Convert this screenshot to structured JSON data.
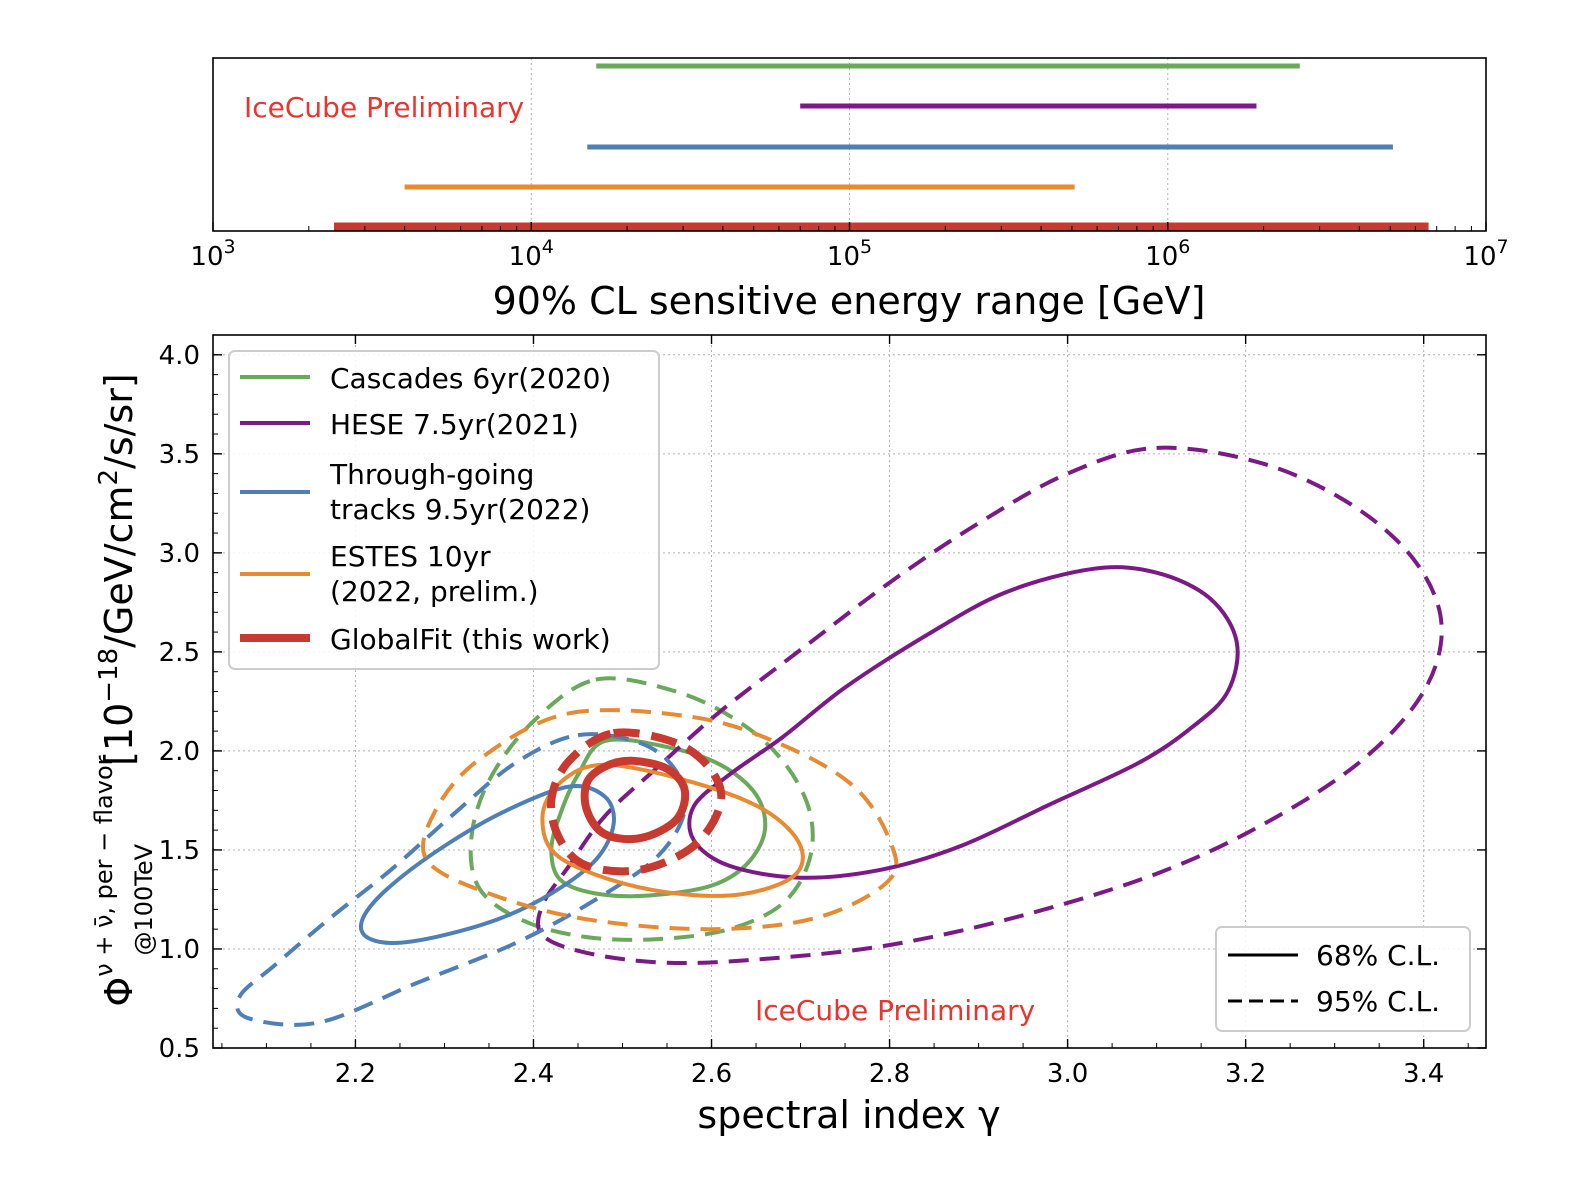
{
  "chart_data": [
    {
      "type": "range",
      "xscale": "log",
      "xlim": [
        1000,
        10000000
      ],
      "xticks": [
        {
          "base": "10",
          "exp": "3"
        },
        {
          "base": "10",
          "exp": "4"
        },
        {
          "base": "10",
          "exp": "5"
        },
        {
          "base": "10",
          "exp": "6"
        },
        {
          "base": "10",
          "exp": "7"
        }
      ],
      "xlabel": "90% CL sensitive energy range [GeV]",
      "annotation": "IceCube Preliminary",
      "grid": true,
      "series": [
        {
          "name": "Cascades 6yr(2020)",
          "color": "#6aa85c",
          "range": [
            16000,
            2600000
          ],
          "width": 5
        },
        {
          "name": "HESE 7.5yr(2021)",
          "color": "#7b1a86",
          "range": [
            70000,
            1900000
          ],
          "width": 5
        },
        {
          "name": "Through-going tracks 9.5yr(2022)",
          "color": "#4e7fb7",
          "range": [
            15000,
            5100000
          ],
          "width": 5
        },
        {
          "name": "ESTES 10yr (2022, prelim.)",
          "color": "#e88a32",
          "range": [
            4000,
            510000
          ],
          "width": 5
        },
        {
          "name": "GlobalFit (this work)",
          "color": "#c8392f",
          "range": [
            2400,
            6600000
          ],
          "width": 9
        }
      ]
    },
    {
      "type": "contour",
      "xlim": [
        2.04,
        3.47
      ],
      "ylim": [
        0.5,
        4.1
      ],
      "xticks": [
        "2.2",
        "2.4",
        "2.6",
        "2.8",
        "3.0",
        "3.2",
        "3.4"
      ],
      "yticks": [
        "0.5",
        "1.0",
        "1.5",
        "2.0",
        "2.5",
        "3.0",
        "3.5",
        "4.0"
      ],
      "xlabel": "spectral index γ",
      "ylabel": {
        "phi": "Φ",
        "superscript": "ν + ν̄, per − flavor",
        "subscript": "@100TeV",
        "bracket_open": "[10",
        "exp18": "−18",
        "unit_mid": "/GeV/cm",
        "exp2": "2",
        "unit_end": "/s/sr]"
      },
      "annotation": "IceCube Preliminary",
      "grid": true,
      "legend": {
        "position": "top-left",
        "entries": [
          {
            "lines": [
              "Cascades 6yr(2020)"
            ],
            "color": "#6aa85c"
          },
          {
            "lines": [
              "HESE 7.5yr(2021)"
            ],
            "color": "#7b1a86"
          },
          {
            "lines": [
              "Through-going",
              "tracks 9.5yr(2022)"
            ],
            "color": "#4e7fb7"
          },
          {
            "lines": [
              "ESTES 10yr",
              "(2022, prelim.)"
            ],
            "color": "#e88a32"
          },
          {
            "lines": [
              "GlobalFit (this work)"
            ],
            "color": "#c8392f"
          }
        ]
      },
      "style_legend": {
        "position": "bottom-right",
        "entries": [
          {
            "label": "68% C.L.",
            "style": "solid"
          },
          {
            "label": "95% C.L.",
            "style": "dashed"
          }
        ]
      },
      "series": [
        {
          "name": "Cascades 6yr(2020)",
          "color": "#6aa85c",
          "width": 4,
          "contours": [
            {
              "level": "68% C.L.",
              "points": [
                [
                  2.48,
                  2.05
                ],
                [
                  2.55,
                  2.02
                ],
                [
                  2.61,
                  1.93
                ],
                [
                  2.65,
                  1.78
                ],
                [
                  2.66,
                  1.6
                ],
                [
                  2.64,
                  1.43
                ],
                [
                  2.6,
                  1.32
                ],
                [
                  2.53,
                  1.27
                ],
                [
                  2.47,
                  1.28
                ],
                [
                  2.43,
                  1.35
                ],
                [
                  2.42,
                  1.5
                ],
                [
                  2.43,
                  1.68
                ],
                [
                  2.45,
                  1.88
                ]
              ]
            },
            {
              "level": "95% C.L.",
              "points": [
                [
                  2.47,
                  2.36
                ],
                [
                  2.56,
                  2.3
                ],
                [
                  2.63,
                  2.15
                ],
                [
                  2.68,
                  1.95
                ],
                [
                  2.71,
                  1.7
                ],
                [
                  2.71,
                  1.45
                ],
                [
                  2.68,
                  1.23
                ],
                [
                  2.62,
                  1.1
                ],
                [
                  2.54,
                  1.05
                ],
                [
                  2.46,
                  1.06
                ],
                [
                  2.39,
                  1.14
                ],
                [
                  2.34,
                  1.3
                ],
                [
                  2.33,
                  1.55
                ],
                [
                  2.35,
                  1.85
                ],
                [
                  2.4,
                  2.15
                ]
              ]
            }
          ]
        },
        {
          "name": "HESE 7.5yr(2021)",
          "color": "#7b1a86",
          "width": 4,
          "contours": [
            {
              "level": "68% C.L.",
              "points": [
                [
                  3.03,
                  2.92
                ],
                [
                  3.1,
                  2.9
                ],
                [
                  3.16,
                  2.77
                ],
                [
                  3.19,
                  2.55
                ],
                [
                  3.18,
                  2.3
                ],
                [
                  3.14,
                  2.12
                ],
                [
                  3.08,
                  1.94
                ],
                [
                  2.98,
                  1.73
                ],
                [
                  2.88,
                  1.52
                ],
                [
                  2.79,
                  1.4
                ],
                [
                  2.7,
                  1.36
                ],
                [
                  2.62,
                  1.42
                ],
                [
                  2.58,
                  1.55
                ],
                [
                  2.58,
                  1.72
                ],
                [
                  2.62,
                  1.88
                ],
                [
                  2.68,
                  2.07
                ],
                [
                  2.75,
                  2.32
                ],
                [
                  2.84,
                  2.58
                ],
                [
                  2.93,
                  2.8
                ]
              ]
            },
            {
              "level": "95% C.L.",
              "points": [
                [
                  3.1,
                  3.53
                ],
                [
                  3.22,
                  3.45
                ],
                [
                  3.32,
                  3.24
                ],
                [
                  3.39,
                  2.96
                ],
                [
                  3.42,
                  2.64
                ],
                [
                  3.4,
                  2.3
                ],
                [
                  3.33,
                  1.95
                ],
                [
                  3.22,
                  1.63
                ],
                [
                  3.1,
                  1.38
                ],
                [
                  2.95,
                  1.17
                ],
                [
                  2.8,
                  1.02
                ],
                [
                  2.66,
                  0.95
                ],
                [
                  2.55,
                  0.93
                ],
                [
                  2.46,
                  0.98
                ],
                [
                  2.41,
                  1.07
                ],
                [
                  2.41,
                  1.22
                ],
                [
                  2.44,
                  1.42
                ],
                [
                  2.48,
                  1.67
                ],
                [
                  2.54,
                  1.92
                ],
                [
                  2.61,
                  2.2
                ],
                [
                  2.7,
                  2.51
                ],
                [
                  2.8,
                  2.85
                ],
                [
                  2.9,
                  3.15
                ],
                [
                  3.0,
                  3.4
                ]
              ]
            }
          ]
        },
        {
          "name": "Through-going tracks 9.5yr(2022)",
          "color": "#4e7fb7",
          "width": 4,
          "contours": [
            {
              "level": "68% C.L.",
              "points": [
                [
                  2.44,
                  1.82
                ],
                [
                  2.48,
                  1.77
                ],
                [
                  2.49,
                  1.63
                ],
                [
                  2.47,
                  1.45
                ],
                [
                  2.42,
                  1.28
                ],
                [
                  2.36,
                  1.15
                ],
                [
                  2.29,
                  1.06
                ],
                [
                  2.24,
                  1.03
                ],
                [
                  2.21,
                  1.07
                ],
                [
                  2.21,
                  1.17
                ],
                [
                  2.24,
                  1.32
                ],
                [
                  2.3,
                  1.52
                ],
                [
                  2.37,
                  1.7
                ]
              ]
            },
            {
              "level": "95% C.L.",
              "points": [
                [
                  2.45,
                  2.08
                ],
                [
                  2.52,
                  2.04
                ],
                [
                  2.56,
                  1.9
                ],
                [
                  2.57,
                  1.7
                ],
                [
                  2.54,
                  1.47
                ],
                [
                  2.47,
                  1.25
                ],
                [
                  2.38,
                  1.03
                ],
                [
                  2.27,
                  0.83
                ],
                [
                  2.16,
                  0.63
                ],
                [
                  2.08,
                  0.65
                ],
                [
                  2.07,
                  0.76
                ],
                [
                  2.11,
                  0.92
                ],
                [
                  2.17,
                  1.15
                ],
                [
                  2.24,
                  1.4
                ],
                [
                  2.31,
                  1.68
                ],
                [
                  2.38,
                  1.94
                ]
              ]
            }
          ]
        },
        {
          "name": "ESTES 10yr (2022, prelim.)",
          "color": "#e88a32",
          "width": 4,
          "contours": [
            {
              "level": "68% C.L.",
              "points": [
                [
                  2.48,
                  1.93
                ],
                [
                  2.58,
                  1.84
                ],
                [
                  2.66,
                  1.7
                ],
                [
                  2.7,
                  1.52
                ],
                [
                  2.69,
                  1.36
                ],
                [
                  2.62,
                  1.27
                ],
                [
                  2.52,
                  1.31
                ],
                [
                  2.43,
                  1.46
                ],
                [
                  2.41,
                  1.66
                ],
                [
                  2.43,
                  1.84
                ]
              ]
            },
            {
              "level": "95% C.L.",
              "points": [
                [
                  2.44,
                  2.19
                ],
                [
                  2.58,
                  2.17
                ],
                [
                  2.68,
                  2.03
                ],
                [
                  2.76,
                  1.82
                ],
                [
                  2.8,
                  1.55
                ],
                [
                  2.8,
                  1.35
                ],
                [
                  2.72,
                  1.16
                ],
                [
                  2.6,
                  1.1
                ],
                [
                  2.46,
                  1.15
                ],
                [
                  2.35,
                  1.28
                ],
                [
                  2.28,
                  1.45
                ],
                [
                  2.29,
                  1.7
                ],
                [
                  2.34,
                  1.96
                ]
              ]
            }
          ]
        },
        {
          "name": "GlobalFit (this work)",
          "color": "#c8392f",
          "width": 8,
          "contours": [
            {
              "level": "68% C.L.",
              "points": [
                [
                  2.51,
                  1.95
                ],
                [
                  2.55,
                  1.91
                ],
                [
                  2.57,
                  1.8
                ],
                [
                  2.56,
                  1.65
                ],
                [
                  2.52,
                  1.56
                ],
                [
                  2.48,
                  1.58
                ],
                [
                  2.46,
                  1.7
                ],
                [
                  2.46,
                  1.84
                ],
                [
                  2.48,
                  1.92
                ]
              ]
            },
            {
              "level": "95% C.L.",
              "points": [
                [
                  2.49,
                  2.09
                ],
                [
                  2.56,
                  2.04
                ],
                [
                  2.6,
                  1.9
                ],
                [
                  2.61,
                  1.73
                ],
                [
                  2.58,
                  1.52
                ],
                [
                  2.52,
                  1.4
                ],
                [
                  2.46,
                  1.42
                ],
                [
                  2.43,
                  1.55
                ],
                [
                  2.42,
                  1.75
                ],
                [
                  2.44,
                  1.95
                ]
              ]
            }
          ]
        }
      ]
    }
  ]
}
